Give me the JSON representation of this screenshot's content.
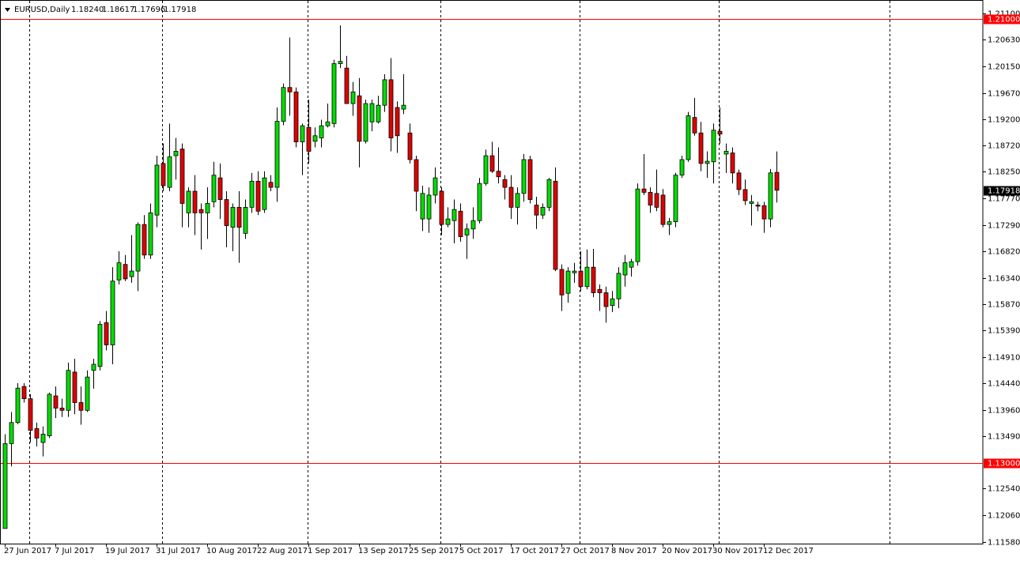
{
  "chart_data": {
    "type": "candlestick",
    "title": "EURUSD,Daily",
    "quote_labels": [
      "1.18240",
      "1.18617",
      "1.17696",
      "1.17918"
    ],
    "last_price_label": "1.17918",
    "bull_color": "#00dd00",
    "bear_color": "#e00000",
    "level_color": "#ff0000",
    "levels": [
      {
        "value": 1.21,
        "label": "1.21000"
      },
      {
        "value": 1.13,
        "label": "1.13000"
      }
    ],
    "ylim": [
      1.1154,
      1.2134
    ],
    "yticks": [
      {
        "value": 1.211,
        "label": "1.21100"
      },
      {
        "value": 1.2063,
        "label": "1.20630"
      },
      {
        "value": 1.2015,
        "label": "1.20150"
      },
      {
        "value": 1.1967,
        "label": "1.19670"
      },
      {
        "value": 1.192,
        "label": "1.19200"
      },
      {
        "value": 1.1872,
        "label": "1.18720"
      },
      {
        "value": 1.1825,
        "label": "1.18250"
      },
      {
        "value": 1.1777,
        "label": "1.17770"
      },
      {
        "value": 1.1729,
        "label": "1.17290"
      },
      {
        "value": 1.1682,
        "label": "1.16820"
      },
      {
        "value": 1.1634,
        "label": "1.16340"
      },
      {
        "value": 1.1587,
        "label": "1.15870"
      },
      {
        "value": 1.1539,
        "label": "1.15390"
      },
      {
        "value": 1.1491,
        "label": "1.14910"
      },
      {
        "value": 1.1444,
        "label": "1.14440"
      },
      {
        "value": 1.1396,
        "label": "1.13960"
      },
      {
        "value": 1.1349,
        "label": "1.13490"
      },
      {
        "value": 1.1254,
        "label": "1.12540"
      },
      {
        "value": 1.1206,
        "label": "1.12060"
      },
      {
        "value": 1.1158,
        "label": "1.11580"
      }
    ],
    "categories": [
      "27 Jun 2017",
      null,
      null,
      null,
      null,
      null,
      null,
      null,
      "7 Jul 2017",
      null,
      null,
      null,
      null,
      null,
      null,
      null,
      "19 Jul 2017",
      null,
      null,
      null,
      null,
      null,
      null,
      null,
      "31 Jul 2017",
      null,
      null,
      null,
      null,
      null,
      null,
      null,
      "10 Aug 2017",
      null,
      null,
      null,
      null,
      null,
      null,
      null,
      "22 Aug 2017",
      null,
      null,
      null,
      null,
      null,
      null,
      null,
      "1 Sep 2017",
      null,
      null,
      null,
      null,
      null,
      null,
      null,
      "13 Sep 2017",
      null,
      null,
      null,
      null,
      null,
      null,
      null,
      "25 Sep 2017",
      null,
      null,
      null,
      null,
      null,
      null,
      null,
      "5 Oct 2017",
      null,
      null,
      null,
      null,
      null,
      null,
      null,
      "17 Oct 2017",
      null,
      null,
      null,
      null,
      null,
      null,
      null,
      "27 Oct 2017",
      null,
      null,
      null,
      null,
      null,
      null,
      null,
      "8 Nov 2017",
      null,
      null,
      null,
      null,
      null,
      null,
      null,
      "20 Nov 2017",
      null,
      null,
      null,
      null,
      null,
      null,
      null,
      "30 Nov 2017",
      null,
      null,
      null,
      null,
      null,
      null,
      null,
      "12 Dec 2017",
      null,
      null
    ],
    "open": [
      1.1182,
      1.1335,
      1.1373,
      1.1438,
      1.1416,
      1.1362,
      1.1337,
      1.1349,
      1.1421,
      1.1399,
      1.1395,
      1.1464,
      1.1409,
      1.1395,
      1.1467,
      1.1474,
      1.1553,
      1.1513,
      1.163,
      1.1658,
      1.1636,
      1.1646,
      1.173,
      1.1675,
      1.1747,
      1.184,
      1.1797,
      1.1854,
      1.1866,
      1.1751,
      1.179,
      1.1757,
      1.1751,
      1.1771,
      1.1814,
      1.1775,
      1.1725,
      1.1761,
      1.1714,
      1.1761,
      1.1808,
      1.1757,
      1.1806,
      1.1797,
      1.1916,
      1.1977,
      1.1969,
      1.1879,
      1.1905,
      1.188,
      1.1886,
      1.1908,
      1.1912,
      1.202,
      1.2012,
      1.1948,
      1.1962,
      1.188,
      1.1915,
      1.1915,
      1.1945,
      1.1991,
      1.1941,
      1.1938,
      1.1895,
      1.1847,
      1.174,
      1.174,
      1.1783,
      1.179,
      1.173,
      1.1737,
      1.1754,
      1.1711,
      1.1722,
      1.1737,
      1.1804,
      1.1854,
      1.1826,
      1.1811,
      1.1797,
      1.1761,
      1.1786,
      1.1847,
      1.1765,
      1.1747,
      1.1761,
      1.1808,
      1.1649,
      1.1606,
      1.1643,
      1.1646,
      1.1618,
      1.1653,
      1.1613,
      1.1607,
      1.1584,
      1.1596,
      1.1639,
      1.1653,
      1.1663,
      1.1794,
      1.1788,
      1.1786,
      1.1783,
      1.173,
      1.1735,
      1.1819,
      1.1847,
      1.1923,
      1.1895,
      1.184,
      1.1843,
      1.1898,
      1.1857,
      1.1859,
      1.1823,
      1.1793,
      1.1768,
      1.1765,
      1.1764,
      1.174,
      1.1824
    ],
    "high": [
      1.1352,
      1.1392,
      1.1444,
      1.1444,
      1.1424,
      1.1373,
      1.1366,
      1.1427,
      1.1438,
      1.1416,
      1.1481,
      1.1488,
      1.1438,
      1.1467,
      1.1488,
      1.1556,
      1.1574,
      1.1653,
      1.1682,
      1.1675,
      1.1711,
      1.1734,
      1.1747,
      1.1768,
      1.1854,
      1.1876,
      1.1912,
      1.1886,
      1.1876,
      1.1797,
      1.1819,
      1.1768,
      1.1797,
      1.1843,
      1.184,
      1.179,
      1.1768,
      1.179,
      1.1775,
      1.1823,
      1.1826,
      1.1826,
      1.1819,
      1.1941,
      1.1984,
      1.2067,
      1.1977,
      1.1912,
      1.1955,
      1.1905,
      1.1919,
      1.1948,
      1.2027,
      1.2089,
      1.2034,
      1.1987,
      1.1994,
      1.1955,
      1.1955,
      1.1962,
      1.2001,
      1.203,
      1.1952,
      1.2001,
      1.1912,
      1.1854,
      1.18,
      1.1797,
      1.1833,
      1.1797,
      1.1761,
      1.1775,
      1.1768,
      1.1732,
      1.1761,
      1.1814,
      1.1865,
      1.1879,
      1.1869,
      1.1819,
      1.1819,
      1.1797,
      1.1857,
      1.1854,
      1.178,
      1.1768,
      1.1814,
      1.1833,
      1.1658,
      1.1653,
      1.1661,
      1.1682,
      1.1685,
      1.1686,
      1.1622,
      1.1618,
      1.161,
      1.1653,
      1.1675,
      1.1668,
      1.1804,
      1.1857,
      1.1797,
      1.1829,
      1.1794,
      1.1742,
      1.1823,
      1.1854,
      1.1933,
      1.1958,
      1.1915,
      1.1862,
      1.1912,
      1.1941,
      1.1876,
      1.1869,
      1.1829,
      1.1811,
      1.1783,
      1.1771,
      1.1771,
      1.183,
      1.18617
    ],
    "low": [
      1.1182,
      1.1294,
      1.137,
      1.1409,
      1.1337,
      1.133,
      1.1312,
      1.1345,
      1.1381,
      1.1383,
      1.1383,
      1.1388,
      1.1369,
      1.1392,
      1.1434,
      1.1467,
      1.1503,
      1.1478,
      1.1622,
      1.1628,
      1.1625,
      1.161,
      1.1668,
      1.1668,
      1.1725,
      1.179,
      1.179,
      1.1811,
      1.1725,
      1.1725,
      1.1711,
      1.1685,
      1.1704,
      1.1761,
      1.174,
      1.1689,
      1.1682,
      1.1661,
      1.1704,
      1.1751,
      1.1747,
      1.1751,
      1.179,
      1.1771,
      1.1909,
      1.1926,
      1.1869,
      1.1819,
      1.184,
      1.1869,
      1.1869,
      1.1905,
      1.1905,
      1.2012,
      1.1948,
      1.1926,
      1.1833,
      1.1876,
      1.1898,
      1.1912,
      1.1933,
      1.1862,
      1.1859,
      1.1929,
      1.184,
      1.1754,
      1.1718,
      1.1715,
      1.1768,
      1.1711,
      1.1725,
      1.1696,
      1.1699,
      1.1668,
      1.1704,
      1.1732,
      1.18,
      1.1823,
      1.1804,
      1.1775,
      1.174,
      1.173,
      1.1771,
      1.1768,
      1.1722,
      1.174,
      1.1754,
      1.1646,
      1.1574,
      1.1589,
      1.1625,
      1.161,
      1.1613,
      1.1599,
      1.1574,
      1.1553,
      1.1572,
      1.1579,
      1.1618,
      1.1636,
      1.1656,
      1.1783,
      1.1751,
      1.1754,
      1.1725,
      1.1711,
      1.1725,
      1.1814,
      1.1843,
      1.189,
      1.1826,
      1.1814,
      1.1804,
      1.1876,
      1.1823,
      1.1804,
      1.1783,
      1.1765,
      1.1728,
      1.1754,
      1.1715,
      1.1725,
      1.17696
    ],
    "close": [
      1.1335,
      1.1373,
      1.1435,
      1.1416,
      1.1359,
      1.1345,
      1.1352,
      1.1424,
      1.1399,
      1.1395,
      1.1467,
      1.1409,
      1.1395,
      1.1455,
      1.1478,
      1.155,
      1.1513,
      1.1628,
      1.1661,
      1.1632,
      1.1646,
      1.173,
      1.1675,
      1.1751,
      1.1837,
      1.18,
      1.1852,
      1.1862,
      1.1768,
      1.179,
      1.1751,
      1.1751,
      1.1768,
      1.1819,
      1.1775,
      1.1728,
      1.1761,
      1.1725,
      1.1761,
      1.1808,
      1.1754,
      1.1814,
      1.1797,
      1.1916,
      1.1977,
      1.1969,
      1.1879,
      1.1908,
      1.1862,
      1.189,
      1.1908,
      1.1915,
      1.202,
      1.2024,
      1.1948,
      1.1969,
      1.188,
      1.1948,
      1.1948,
      1.1945,
      1.1991,
      1.1886,
      1.189,
      1.1945,
      1.1847,
      1.179,
      1.1786,
      1.1783,
      1.1814,
      1.173,
      1.174,
      1.1757,
      1.1708,
      1.1722,
      1.1737,
      1.1804,
      1.1854,
      1.1826,
      1.1816,
      1.1797,
      1.1761,
      1.1786,
      1.1847,
      1.1775,
      1.1747,
      1.1761,
      1.1811,
      1.1649,
      1.1603,
      1.1646,
      1.1646,
      1.1618,
      1.1653,
      1.1607,
      1.1607,
      1.1582,
      1.1596,
      1.1642,
      1.1661,
      1.1663,
      1.1794,
      1.1788,
      1.1765,
      1.1761,
      1.173,
      1.1735,
      1.1819,
      1.1847,
      1.1926,
      1.1895,
      1.184,
      1.1844,
      1.19,
      1.1893,
      1.1862,
      1.1823,
      1.1793,
      1.1773,
      1.1771,
      1.1763,
      1.174,
      1.1823,
      1.17918
    ]
  }
}
